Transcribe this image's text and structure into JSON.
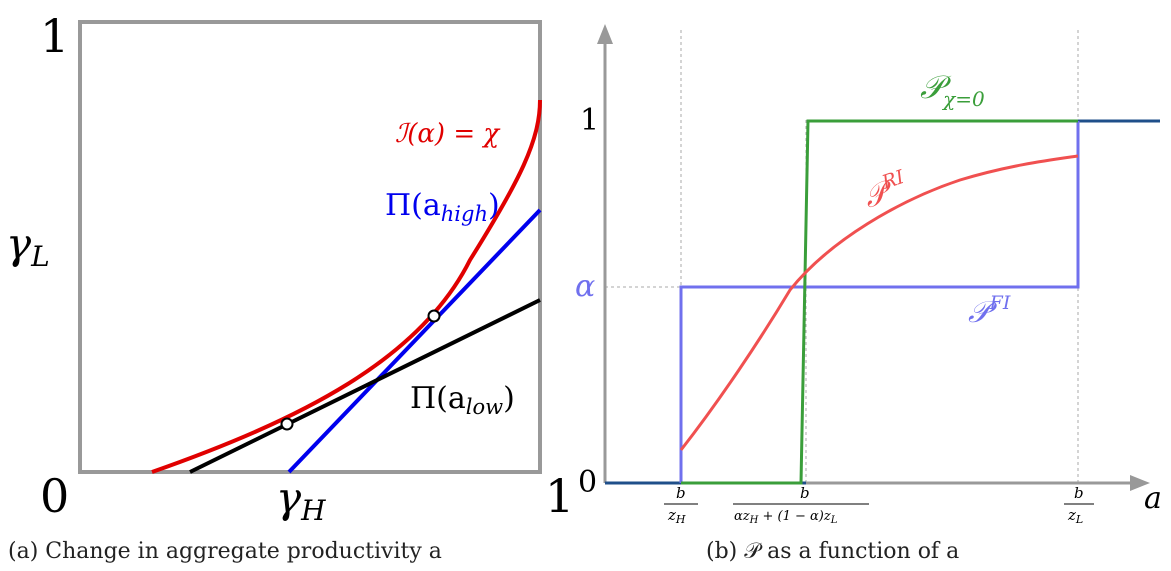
{
  "left_panel": {
    "axis_top": "1",
    "axis_origin": "0",
    "axis_right": "1",
    "ylabel": "γ",
    "ylabel_sub": "L",
    "xlabel": "γ",
    "xlabel_sub": "H",
    "curve_label": "ℐ(α) = χ",
    "high_label": "Π(a",
    "high_sub": "high",
    "high_close": ")",
    "low_label": "Π(a",
    "low_sub": "low",
    "low_close": ")",
    "caption": "(a) Change in aggregate productivity a",
    "colors": {
      "curve": "#e00000",
      "high": "#0000ee",
      "low": "#000000",
      "frame": "#999999"
    }
  },
  "right_panel": {
    "x_axis_label": "a",
    "y_tick_1": "1",
    "y_tick_alpha": "α",
    "y_tick_0": "0",
    "x_tick_1_num": "b",
    "x_tick_1_den": "z",
    "x_tick_1_den_sub": "H",
    "x_tick_2_num": "b",
    "x_tick_2_den": "αz",
    "x_tick_2_den_sub1": "H",
    "x_tick_2_den_mid": " + (1 − α)z",
    "x_tick_2_den_sub2": "L",
    "x_tick_3_num": "b",
    "x_tick_3_den": "z",
    "x_tick_3_den_sub": "L",
    "p_chi_label": "𝒫",
    "p_chi_sub": "χ=0",
    "p_ri_label": "𝒫",
    "p_ri_sup": "RI",
    "p_fi_label": "𝒫",
    "p_fi_sup": "FI",
    "caption": "(b) 𝒫 as a function of a",
    "colors": {
      "chi": "#3a9e3a",
      "ri": "#f05050",
      "fi": "#7070ee",
      "base": "#1f4f8a",
      "axis": "#999999"
    }
  }
}
